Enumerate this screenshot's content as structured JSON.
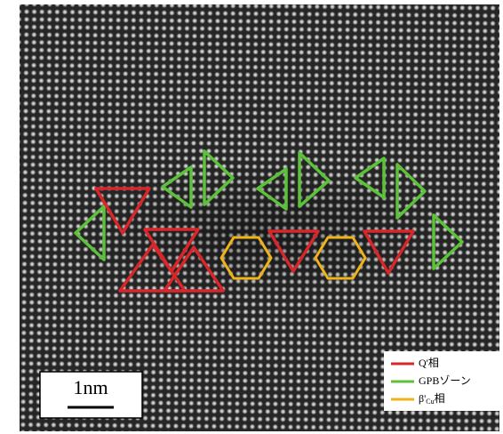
{
  "scale_bar": {
    "label": "1nm"
  },
  "legend": [
    {
      "label": "Q'相"
    },
    {
      "label": "GPBゾーン"
    },
    {
      "label_parts": [
        "β'",
        "Cu",
        "相"
      ]
    }
  ]
}
